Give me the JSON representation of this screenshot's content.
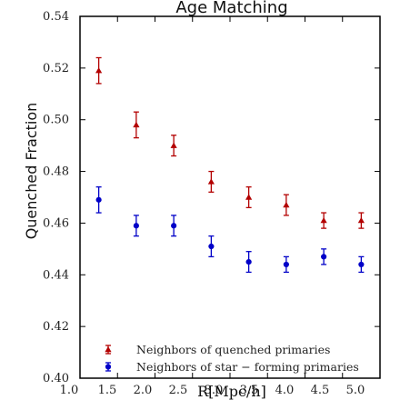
{
  "chart_data": {
    "type": "scatter",
    "title": "Age Matching",
    "xlabel": "R[Mpc/h]",
    "ylabel": "Quenched Fraction",
    "xlim": [
      1.0,
      5.0
    ],
    "ylim": [
      0.4,
      0.54
    ],
    "x_ticks": [
      "1.0",
      "1.5",
      "2.0",
      "2.5",
      "3.0",
      "3.5",
      "4.0",
      "4.5",
      "5.0"
    ],
    "y_ticks": [
      "0.40",
      "0.42",
      "0.44",
      "0.46",
      "0.48",
      "0.50",
      "0.52",
      "0.54"
    ],
    "grid": false,
    "legend_position": "bottom-right",
    "series": [
      {
        "name": "Neighbors of quenched primaries",
        "color": "#b30000",
        "marker": "triangle",
        "x": [
          1.25,
          1.75,
          2.25,
          2.75,
          3.25,
          3.75,
          4.25,
          4.75
        ],
        "y": [
          0.519,
          0.498,
          0.49,
          0.476,
          0.47,
          0.467,
          0.461,
          0.461
        ],
        "yerr": [
          0.005,
          0.005,
          0.004,
          0.004,
          0.004,
          0.004,
          0.003,
          0.003
        ]
      },
      {
        "name": "Neighbors of star − forming primaries",
        "color": "#0000c8",
        "marker": "circle",
        "x": [
          1.25,
          1.75,
          2.25,
          2.75,
          3.25,
          3.75,
          4.25,
          4.75
        ],
        "y": [
          0.469,
          0.459,
          0.459,
          0.451,
          0.445,
          0.444,
          0.447,
          0.444
        ],
        "yerr": [
          0.005,
          0.004,
          0.004,
          0.004,
          0.004,
          0.003,
          0.003,
          0.003
        ]
      }
    ]
  }
}
